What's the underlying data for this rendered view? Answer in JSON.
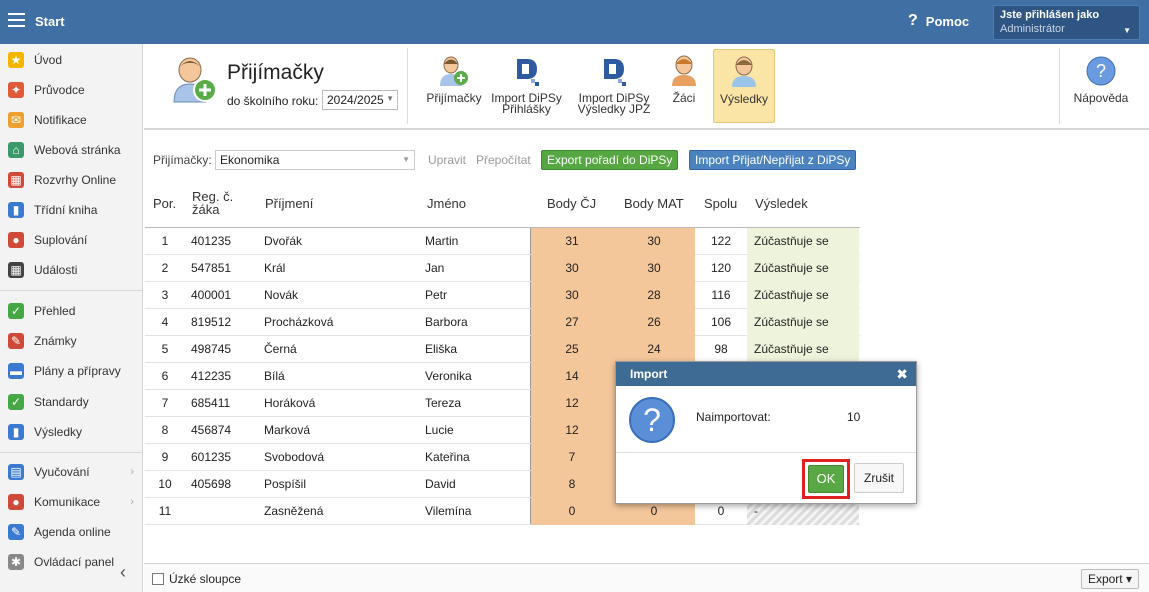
{
  "topbar": {
    "start": "Start",
    "help": "Pomoc",
    "user_line1": "Jste přihlášen jako",
    "user_line2": "Administrátor"
  },
  "sidebar": {
    "items": [
      {
        "label": "Úvod",
        "icon": "star-icon",
        "color": "#f2b600"
      },
      {
        "label": "Průvodce",
        "icon": "wand-icon",
        "color": "#e05a3a"
      },
      {
        "label": "Notifikace",
        "icon": "envelope-icon",
        "color": "#f0a030"
      },
      {
        "label": "Webová stránka",
        "icon": "house-icon",
        "color": "#3a9a6a"
      },
      {
        "label": "Rozvrhy Online",
        "icon": "calendar-grid-icon",
        "color": "#d04a3a"
      },
      {
        "label": "Třídní kniha",
        "icon": "book-icon",
        "color": "#3a7ad0"
      },
      {
        "label": "Suplování",
        "icon": "person-icon",
        "color": "#d04a3a"
      },
      {
        "label": "Události",
        "icon": "calendar-icon",
        "color": "#444444"
      },
      {
        "label": "Přehled",
        "icon": "check-circle-icon",
        "color": "#46a844"
      },
      {
        "label": "Známky",
        "icon": "grade-icon",
        "color": "#d04a3a"
      },
      {
        "label": "Plány a přípravy",
        "icon": "briefcase-icon",
        "color": "#3a7ad0"
      },
      {
        "label": "Standardy",
        "icon": "shield-check-icon",
        "color": "#46a844"
      },
      {
        "label": "Výsledky",
        "icon": "bar-chart-icon",
        "color": "#3a7ad0"
      },
      {
        "label": "Vyučování",
        "icon": "books-icon",
        "color": "#3a7ad0"
      },
      {
        "label": "Komunikace",
        "icon": "chat-icon",
        "color": "#d04a3a"
      },
      {
        "label": "Agenda online",
        "icon": "pen-icon",
        "color": "#3a7ad0"
      },
      {
        "label": "Ovládací panel",
        "icon": "gear-icon",
        "color": "#888888"
      }
    ]
  },
  "ribbon": {
    "title": "Přijímačky",
    "year_label": "do školního roku:",
    "year_value": "2024/2025",
    "buttons": [
      {
        "l1": "Přijímačky",
        "l2": ""
      },
      {
        "l1": "Import DiPSy",
        "l2": "Přihlášky"
      },
      {
        "l1": "Import DiPSy",
        "l2": "Výsledky JPZ"
      },
      {
        "l1": "Žáci",
        "l2": ""
      },
      {
        "l1": "Výsledky",
        "l2": ""
      }
    ],
    "help_label": "Nápověda"
  },
  "toolbar": {
    "select_label": "Přijímačky:",
    "select_value": "Ekonomika",
    "edit": "Upravit",
    "recalc": "Přepočítat",
    "export_btn": "Export pořadí do DiPSy",
    "import_btn": "Import Přijat/Nepřijat z DiPSy"
  },
  "table": {
    "headers": {
      "por": "Por.",
      "reg1": "Reg. č.",
      "reg2": "žáka",
      "prijmeni": "Příjmení",
      "jmeno": "Jméno",
      "cj": "Body ČJ",
      "mat": "Body MAT",
      "spolu": "Spolu",
      "vysledek": "Výsledek"
    },
    "rows": [
      {
        "por": "1",
        "reg": "401235",
        "prijmeni": "Dvořák",
        "jmeno": "Martin",
        "cj": "31",
        "mat": "30",
        "spolu": "122",
        "vysledek": "Zúčastňuje se"
      },
      {
        "por": "2",
        "reg": "547851",
        "prijmeni": "Král",
        "jmeno": "Jan",
        "cj": "30",
        "mat": "30",
        "spolu": "120",
        "vysledek": "Zúčastňuje se"
      },
      {
        "por": "3",
        "reg": "400001",
        "prijmeni": "Novák",
        "jmeno": "Petr",
        "cj": "30",
        "mat": "28",
        "spolu": "116",
        "vysledek": "Zúčastňuje se"
      },
      {
        "por": "4",
        "reg": "819512",
        "prijmeni": "Procházková",
        "jmeno": "Barbora",
        "cj": "27",
        "mat": "26",
        "spolu": "106",
        "vysledek": "Zúčastňuje se"
      },
      {
        "por": "5",
        "reg": "498745",
        "prijmeni": "Černá",
        "jmeno": "Eliška",
        "cj": "25",
        "mat": "24",
        "spolu": "98",
        "vysledek": "Zúčastňuje se"
      },
      {
        "por": "6",
        "reg": "412235",
        "prijmeni": "Bílá",
        "jmeno": "Veronika",
        "cj": "14",
        "mat": "",
        "spolu": "",
        "vysledek": ""
      },
      {
        "por": "7",
        "reg": "685411",
        "prijmeni": "Horáková",
        "jmeno": "Tereza",
        "cj": "12",
        "mat": "",
        "spolu": "",
        "vysledek": ""
      },
      {
        "por": "8",
        "reg": "456874",
        "prijmeni": "Marková",
        "jmeno": "Lucie",
        "cj": "12",
        "mat": "",
        "spolu": "",
        "vysledek": ""
      },
      {
        "por": "9",
        "reg": "601235",
        "prijmeni": "Svobodová",
        "jmeno": "Kateřina",
        "cj": "7",
        "mat": "",
        "spolu": "",
        "vysledek": ""
      },
      {
        "por": "10",
        "reg": "405698",
        "prijmeni": "Pospíšil",
        "jmeno": "David",
        "cj": "8",
        "mat": "",
        "spolu": "",
        "vysledek": ""
      },
      {
        "por": "11",
        "reg": "",
        "prijmeni": "Zasněžená",
        "jmeno": "Vilemína",
        "cj": "0",
        "mat": "0",
        "spolu": "0",
        "vysledek": "-"
      }
    ]
  },
  "footer": {
    "narrow_label": "Úzké sloupce",
    "export": "Export ▾"
  },
  "dialog": {
    "title": "Import",
    "label": "Naimportovat:",
    "value": "10",
    "ok": "OK",
    "cancel": "Zrušit"
  }
}
